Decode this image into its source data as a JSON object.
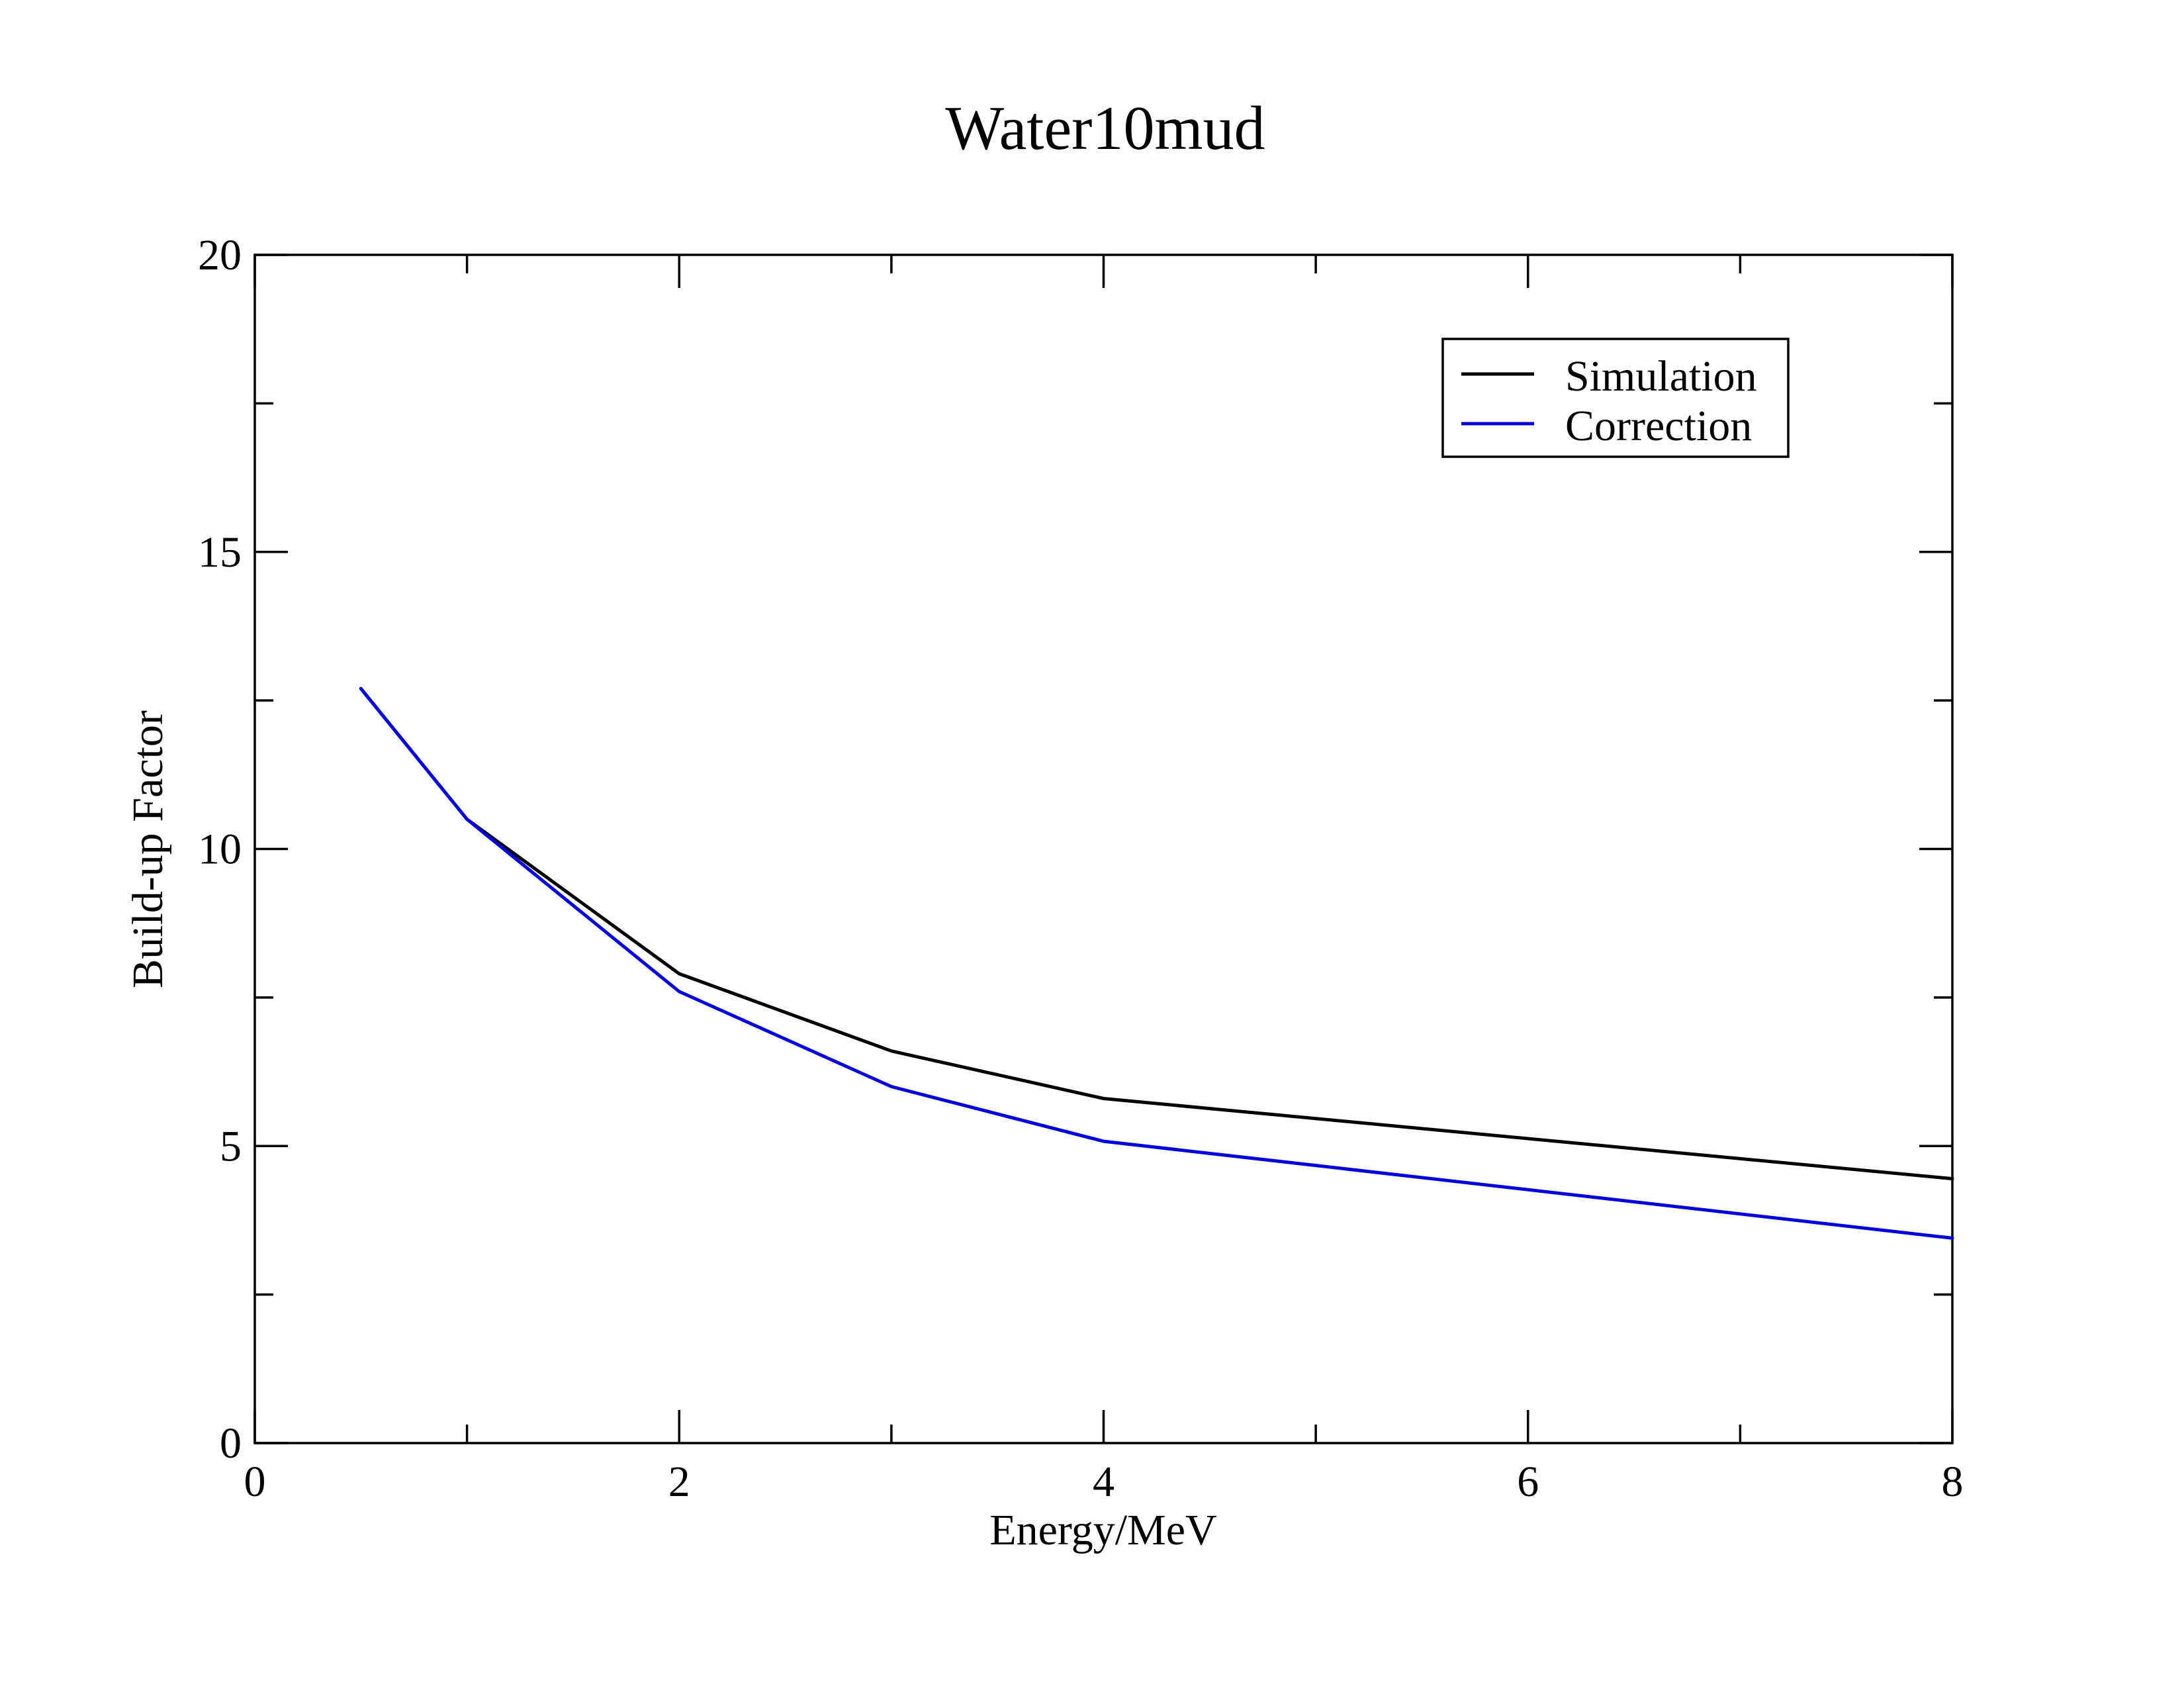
{
  "chart_data": {
    "type": "line",
    "title": "Water10mud",
    "xlabel": "Energy/MeV",
    "ylabel": "Build-up Factor",
    "xlim": [
      0,
      8
    ],
    "ylim": [
      0,
      20
    ],
    "x_major_ticks": [
      0,
      2,
      4,
      6,
      8
    ],
    "x_minor_ticks": [
      1,
      3,
      5,
      7
    ],
    "y_major_ticks": [
      0,
      5,
      10,
      15,
      20
    ],
    "y_minor_ticks": [
      2.5,
      7.5,
      12.5,
      17.5
    ],
    "x_tick_labels": [
      "0",
      "2",
      "4",
      "6",
      "8"
    ],
    "y_tick_labels": [
      "0",
      "5",
      "10",
      "15",
      "20"
    ],
    "grid": false,
    "legend_position": "top-right",
    "series": [
      {
        "name": "Simulation",
        "color": "#000000",
        "x": [
          0.5,
          1,
          2,
          3,
          4,
          8
        ],
        "y": [
          12.7,
          10.5,
          7.9,
          6.6,
          5.8,
          4.45
        ]
      },
      {
        "name": "Correction",
        "color": "#0000dd",
        "x": [
          0.5,
          1,
          2,
          3,
          4,
          8
        ],
        "y": [
          12.7,
          10.5,
          7.6,
          6.0,
          5.08,
          3.45
        ]
      }
    ]
  }
}
